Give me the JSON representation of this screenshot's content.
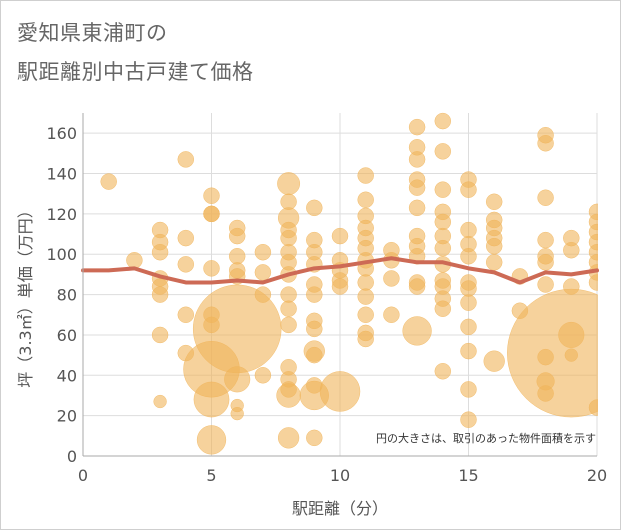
{
  "title_line1": "愛知県東浦町の",
  "title_line2": "駅距離別中古戸建て価格",
  "colors": {
    "bubble": "#f0b45a",
    "line": "#cd6a55",
    "grid": "#dddddd",
    "axis": "#aaaaaa"
  },
  "chart_data": {
    "type": "scatter",
    "xlabel": "駅距離（分）",
    "ylabel": "坪（3.3㎡）単価（万円）",
    "xlim": [
      0,
      20
    ],
    "ylim": [
      0,
      170
    ],
    "xticks": [
      "0",
      "5",
      "10",
      "15",
      "20"
    ],
    "yticks": [
      "0",
      "20",
      "40",
      "60",
      "80",
      "100",
      "120",
      "140",
      "160"
    ],
    "note": "円の大きさは、取引のあった物件面積を示す",
    "trend": {
      "x": [
        0,
        1,
        2,
        3,
        4,
        5,
        6,
        7,
        8,
        9,
        10,
        11,
        12,
        13,
        14,
        15,
        16,
        17,
        18,
        19,
        20
      ],
      "y": [
        92,
        92,
        93,
        89,
        86,
        86,
        87,
        86,
        90,
        93,
        94,
        96,
        98,
        96,
        96,
        93,
        91,
        86,
        91,
        90,
        92
      ]
    },
    "points": [
      [
        1,
        136,
        1
      ],
      [
        2,
        97,
        1
      ],
      [
        3,
        112,
        1
      ],
      [
        3,
        106,
        1
      ],
      [
        3,
        101,
        1
      ],
      [
        3,
        88,
        1
      ],
      [
        3,
        84,
        1
      ],
      [
        3,
        80,
        1
      ],
      [
        3,
        60,
        1
      ],
      [
        3,
        27,
        0.8
      ],
      [
        4,
        147,
        1
      ],
      [
        4,
        108,
        1
      ],
      [
        4,
        95,
        1
      ],
      [
        4,
        70,
        1
      ],
      [
        4,
        51,
        1
      ],
      [
        5,
        129,
        1
      ],
      [
        5,
        120,
        1
      ],
      [
        5,
        120,
        1
      ],
      [
        5,
        93,
        1
      ],
      [
        5,
        70,
        1
      ],
      [
        5,
        65,
        1
      ],
      [
        5,
        43,
        3.5
      ],
      [
        5,
        28,
        2.2
      ],
      [
        5,
        8,
        1.8
      ],
      [
        6,
        113,
        1
      ],
      [
        6,
        109,
        1
      ],
      [
        6,
        99,
        1
      ],
      [
        6,
        92,
        1
      ],
      [
        6,
        89,
        1
      ],
      [
        6,
        63,
        5.5
      ],
      [
        6,
        38,
        1.6
      ],
      [
        6,
        25,
        0.8
      ],
      [
        6,
        21,
        0.8
      ],
      [
        7,
        101,
        1
      ],
      [
        7,
        91,
        1
      ],
      [
        7,
        80,
        1
      ],
      [
        7,
        40,
        1
      ],
      [
        8,
        135,
        1.4
      ],
      [
        8,
        126,
        1
      ],
      [
        8,
        118,
        1.3
      ],
      [
        8,
        112,
        1
      ],
      [
        8,
        108,
        1
      ],
      [
        8,
        101,
        1
      ],
      [
        8,
        96,
        1
      ],
      [
        8,
        90,
        1
      ],
      [
        8,
        80,
        1
      ],
      [
        8,
        73,
        1
      ],
      [
        8,
        65,
        1
      ],
      [
        8,
        44,
        1
      ],
      [
        8,
        38,
        1
      ],
      [
        8,
        33,
        1
      ],
      [
        8,
        30,
        1.5
      ],
      [
        8,
        9,
        1.3
      ],
      [
        9,
        123,
        1
      ],
      [
        9,
        107,
        1
      ],
      [
        9,
        101,
        1
      ],
      [
        9,
        95,
        1
      ],
      [
        9,
        85,
        1
      ],
      [
        9,
        80,
        1
      ],
      [
        9,
        67,
        1
      ],
      [
        9,
        63,
        1
      ],
      [
        9,
        52,
        1.3
      ],
      [
        9,
        50,
        1
      ],
      [
        9,
        35,
        1
      ],
      [
        9,
        30,
        1.8
      ],
      [
        9,
        9,
        1
      ],
      [
        10,
        109,
        1
      ],
      [
        10,
        97,
        1
      ],
      [
        10,
        92,
        1
      ],
      [
        10,
        87,
        1
      ],
      [
        10,
        84,
        1
      ],
      [
        10,
        32,
        2.5
      ],
      [
        11,
        139,
        1
      ],
      [
        11,
        127,
        1
      ],
      [
        11,
        119,
        1
      ],
      [
        11,
        113,
        1
      ],
      [
        11,
        108,
        1
      ],
      [
        11,
        103,
        1
      ],
      [
        11,
        97,
        1
      ],
      [
        11,
        93,
        1
      ],
      [
        11,
        86,
        1
      ],
      [
        11,
        79,
        1
      ],
      [
        11,
        70,
        1
      ],
      [
        11,
        61,
        1
      ],
      [
        11,
        58,
        1
      ],
      [
        12,
        102,
        1
      ],
      [
        12,
        97,
        1
      ],
      [
        12,
        88,
        1
      ],
      [
        12,
        70,
        1
      ],
      [
        13,
        163,
        1
      ],
      [
        13,
        153,
        1
      ],
      [
        13,
        147,
        1
      ],
      [
        13,
        137,
        1
      ],
      [
        13,
        133,
        1
      ],
      [
        13,
        123,
        1
      ],
      [
        13,
        109,
        1
      ],
      [
        13,
        104,
        1
      ],
      [
        13,
        99,
        1
      ],
      [
        13,
        86,
        1
      ],
      [
        13,
        84,
        1
      ],
      [
        13,
        62,
        1.8
      ],
      [
        14,
        166,
        1
      ],
      [
        14,
        151,
        1
      ],
      [
        14,
        132,
        1
      ],
      [
        14,
        121,
        1
      ],
      [
        14,
        116,
        1
      ],
      [
        14,
        109,
        1
      ],
      [
        14,
        103,
        1
      ],
      [
        14,
        95,
        1
      ],
      [
        14,
        87,
        1
      ],
      [
        14,
        84,
        1
      ],
      [
        14,
        78,
        1
      ],
      [
        14,
        73,
        1
      ],
      [
        14,
        42,
        1
      ],
      [
        15,
        137,
        1
      ],
      [
        15,
        132,
        1
      ],
      [
        15,
        112,
        1
      ],
      [
        15,
        105,
        1
      ],
      [
        15,
        99,
        1
      ],
      [
        15,
        86,
        1
      ],
      [
        15,
        83,
        1
      ],
      [
        15,
        76,
        1
      ],
      [
        15,
        64,
        1
      ],
      [
        15,
        52,
        1
      ],
      [
        15,
        33,
        1
      ],
      [
        15,
        18,
        1
      ],
      [
        16,
        126,
        1
      ],
      [
        16,
        117,
        1
      ],
      [
        16,
        113,
        1
      ],
      [
        16,
        108,
        1
      ],
      [
        16,
        104,
        1
      ],
      [
        16,
        96,
        1
      ],
      [
        16,
        47,
        1.3
      ],
      [
        17,
        89,
        1
      ],
      [
        17,
        72,
        1
      ],
      [
        18,
        159,
        1
      ],
      [
        18,
        155,
        1
      ],
      [
        18,
        128,
        1
      ],
      [
        18,
        107,
        1
      ],
      [
        18,
        99,
        1
      ],
      [
        18,
        96,
        1
      ],
      [
        18,
        85,
        1
      ],
      [
        18,
        49,
        1
      ],
      [
        18,
        37,
        1.1
      ],
      [
        18,
        31,
        1
      ],
      [
        19,
        108,
        1
      ],
      [
        19,
        102,
        1
      ],
      [
        19,
        84,
        1
      ],
      [
        19,
        60,
        1.6
      ],
      [
        19,
        51,
        8
      ],
      [
        19,
        50,
        0.8
      ],
      [
        20,
        121,
        1
      ],
      [
        20,
        116,
        1
      ],
      [
        20,
        111,
        1
      ],
      [
        20,
        106,
        1
      ],
      [
        20,
        101,
        1
      ],
      [
        20,
        96,
        1
      ],
      [
        20,
        91,
        1
      ],
      [
        20,
        86,
        1
      ],
      [
        20,
        24,
        1
      ]
    ]
  }
}
